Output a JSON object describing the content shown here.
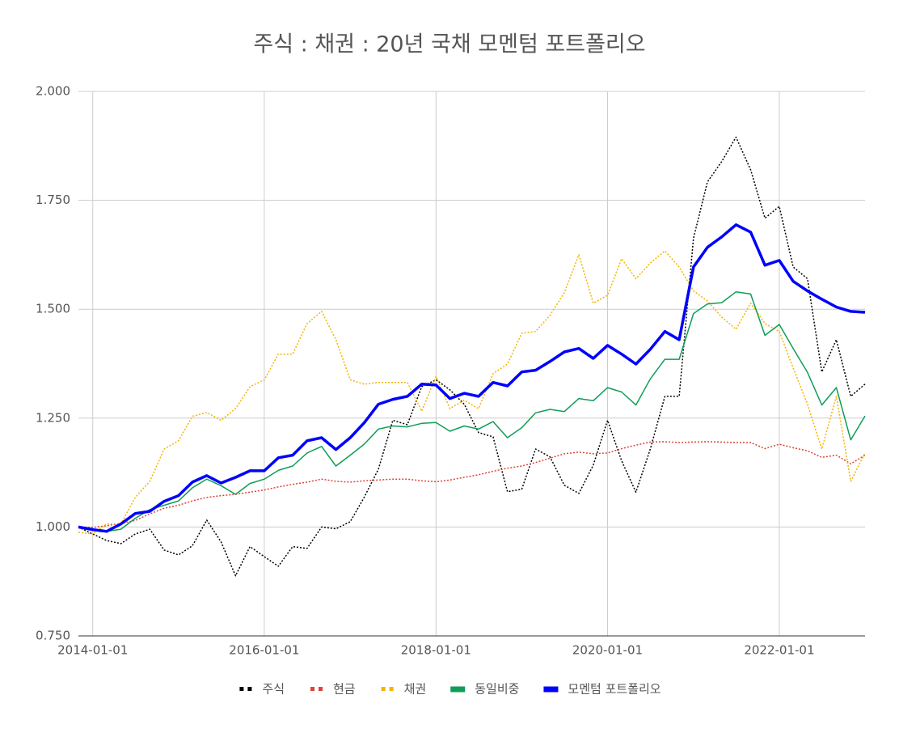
{
  "chart_data": {
    "type": "line",
    "title": "주식 : 채권 : 20년 국채 모멘텀 포트폴리오",
    "x": [
      "2013-11-01",
      "2014-01-01",
      "2014-03-01",
      "2014-05-01",
      "2014-07-01",
      "2014-09-01",
      "2014-11-01",
      "2015-01-01",
      "2015-03-01",
      "2015-05-01",
      "2015-07-01",
      "2015-09-01",
      "2015-11-01",
      "2016-01-01",
      "2016-03-01",
      "2016-05-01",
      "2016-07-01",
      "2016-09-01",
      "2016-11-01",
      "2017-01-01",
      "2017-03-01",
      "2017-05-01",
      "2017-07-01",
      "2017-09-01",
      "2017-11-01",
      "2018-01-01",
      "2018-03-01",
      "2018-05-01",
      "2018-07-01",
      "2018-09-01",
      "2018-11-01",
      "2019-01-01",
      "2019-03-01",
      "2019-05-01",
      "2019-07-01",
      "2019-09-01",
      "2019-11-01",
      "2020-01-01",
      "2020-03-01",
      "2020-05-01",
      "2020-07-01",
      "2020-09-01",
      "2020-11-01",
      "2021-01-01",
      "2021-03-01",
      "2021-05-01",
      "2021-07-01",
      "2021-09-01",
      "2021-11-01",
      "2022-01-01",
      "2022-03-01",
      "2022-05-01",
      "2022-07-01",
      "2022-09-01",
      "2022-11-01",
      "2023-01-01"
    ],
    "series": [
      {
        "name": "주식",
        "color": "#000000",
        "line_style": "dotted",
        "values": [
          1.0,
          0.984,
          0.969,
          0.962,
          0.984,
          0.995,
          0.947,
          0.936,
          0.957,
          1.016,
          0.966,
          0.888,
          0.955,
          0.932,
          0.91,
          0.955,
          0.951,
          1.0,
          0.996,
          1.012,
          1.068,
          1.133,
          1.245,
          1.235,
          1.322,
          1.338,
          1.315,
          1.282,
          1.217,
          1.207,
          1.081,
          1.087,
          1.179,
          1.161,
          1.096,
          1.077,
          1.142,
          1.245,
          1.152,
          1.08,
          1.179,
          1.3,
          1.3,
          1.663,
          1.792,
          1.839,
          1.895,
          1.82,
          1.709,
          1.736,
          1.597,
          1.57,
          1.356,
          1.43,
          1.3,
          1.328
        ]
      },
      {
        "name": "현금",
        "color": "#db4437",
        "line_style": "dotted",
        "values": [
          1.0,
          0.999,
          1.003,
          1.008,
          1.015,
          1.03,
          1.043,
          1.05,
          1.06,
          1.068,
          1.072,
          1.075,
          1.08,
          1.085,
          1.092,
          1.098,
          1.103,
          1.11,
          1.105,
          1.103,
          1.106,
          1.108,
          1.11,
          1.11,
          1.106,
          1.104,
          1.108,
          1.114,
          1.12,
          1.128,
          1.135,
          1.14,
          1.148,
          1.158,
          1.168,
          1.172,
          1.168,
          1.17,
          1.18,
          1.188,
          1.195,
          1.196,
          1.194,
          1.195,
          1.196,
          1.195,
          1.194,
          1.194,
          1.18,
          1.19,
          1.182,
          1.175,
          1.16,
          1.165,
          1.145,
          1.165
        ]
      },
      {
        "name": "채권",
        "color": "#f4b400",
        "line_style": "dotted",
        "values": [
          0.988,
          0.984,
          1.007,
          1.007,
          1.068,
          1.105,
          1.179,
          1.198,
          1.254,
          1.263,
          1.245,
          1.272,
          1.322,
          1.338,
          1.397,
          1.397,
          1.467,
          1.495,
          1.43,
          1.338,
          1.328,
          1.332,
          1.332,
          1.332,
          1.266,
          1.346,
          1.272,
          1.291,
          1.272,
          1.352,
          1.374,
          1.445,
          1.449,
          1.486,
          1.538,
          1.625,
          1.514,
          1.532,
          1.616,
          1.57,
          1.606,
          1.634,
          1.597,
          1.542,
          1.519,
          1.482,
          1.454,
          1.514,
          1.467,
          1.449,
          1.365,
          1.282,
          1.179,
          1.3,
          1.105,
          1.17
        ]
      },
      {
        "name": "동일비중",
        "color": "#0f9d58",
        "line_style": "solid",
        "values": [
          1.0,
          0.992,
          0.99,
          0.995,
          1.02,
          1.04,
          1.05,
          1.06,
          1.09,
          1.11,
          1.095,
          1.075,
          1.1,
          1.11,
          1.13,
          1.14,
          1.17,
          1.185,
          1.14,
          1.165,
          1.19,
          1.225,
          1.232,
          1.23,
          1.238,
          1.24,
          1.22,
          1.232,
          1.225,
          1.242,
          1.205,
          1.228,
          1.262,
          1.27,
          1.265,
          1.295,
          1.29,
          1.32,
          1.31,
          1.28,
          1.34,
          1.385,
          1.385,
          1.49,
          1.512,
          1.515,
          1.54,
          1.535,
          1.44,
          1.465,
          1.41,
          1.355,
          1.28,
          1.32,
          1.2,
          1.255
        ]
      },
      {
        "name": "모멘텀 포트폴리오",
        "color": "#0000ff",
        "line_style": "bold",
        "values": [
          1.0,
          0.994,
          0.99,
          1.007,
          1.031,
          1.036,
          1.059,
          1.072,
          1.103,
          1.118,
          1.101,
          1.114,
          1.129,
          1.129,
          1.159,
          1.165,
          1.198,
          1.205,
          1.178,
          1.205,
          1.239,
          1.282,
          1.293,
          1.3,
          1.328,
          1.326,
          1.295,
          1.307,
          1.3,
          1.332,
          1.324,
          1.356,
          1.36,
          1.38,
          1.402,
          1.41,
          1.387,
          1.417,
          1.397,
          1.374,
          1.408,
          1.449,
          1.43,
          1.597,
          1.642,
          1.666,
          1.694,
          1.677,
          1.601,
          1.612,
          1.564,
          1.542,
          1.523,
          1.505,
          1.495,
          1.493
        ]
      }
    ],
    "xlim": [
      "2013-11-01",
      "2023-01-01"
    ],
    "xticks": [
      "2014-01-01",
      "2016-01-01",
      "2018-01-01",
      "2020-01-01",
      "2022-01-01"
    ],
    "ylim": [
      0.75,
      2.0
    ],
    "yticks": [
      {
        "value": 0.75,
        "label": "0.750"
      },
      {
        "value": 1.0,
        "label": "1.000"
      },
      {
        "value": 1.25,
        "label": "1.250"
      },
      {
        "value": 1.5,
        "label": "1.500"
      },
      {
        "value": 1.75,
        "label": "1.750"
      },
      {
        "value": 2.0,
        "label": "2.000"
      }
    ],
    "grid": true,
    "legend": "bottom"
  }
}
